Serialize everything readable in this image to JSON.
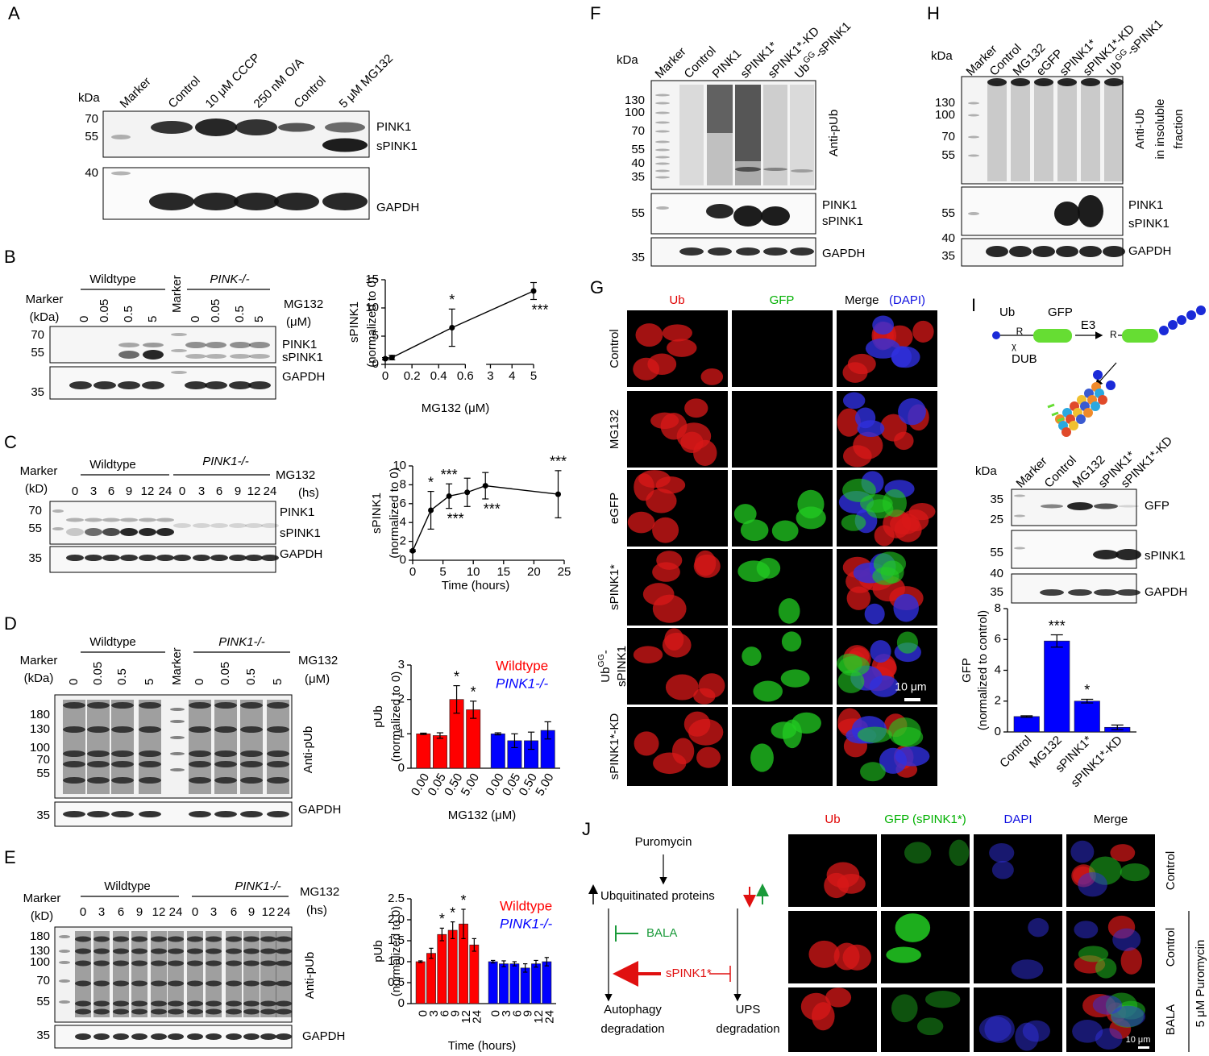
{
  "panels": {
    "A": {
      "letter": "A",
      "kda": "kDa",
      "lanes": [
        "Marker",
        "Control",
        "10 μM CCCP",
        "250 nM O/A",
        "Control",
        "5 μM MG132"
      ],
      "mw": [
        "70",
        "55",
        "40"
      ],
      "bands": [
        "PINK1",
        "sPINK1",
        "GAPDH"
      ]
    },
    "B": {
      "letter": "B",
      "marker": [
        "Marker",
        "(kDa)"
      ],
      "groups": [
        "Wildtype",
        "PINK-/-"
      ],
      "marker_lane": "Marker",
      "lanes": [
        "0",
        "0.05",
        "0.5",
        "5",
        "0",
        "0.05",
        "0.5",
        "5"
      ],
      "treatment": [
        "MG132",
        "(μM)"
      ],
      "mw": [
        "70",
        "55",
        "35"
      ],
      "bands": [
        "PINK1",
        "sPINK1",
        "GAPDH"
      ]
    },
    "C": {
      "letter": "C",
      "marker": [
        "Marker",
        "(kD)"
      ],
      "groups": [
        "Wildtype",
        "PINK1-/-"
      ],
      "lanes": [
        "0",
        "3",
        "6",
        "9",
        "12",
        "24",
        "0",
        "3",
        "6",
        "9",
        "12",
        "24"
      ],
      "treatment": [
        "MG132",
        "(hs)"
      ],
      "mw": [
        "70",
        "55",
        "35"
      ],
      "bands": [
        "PINK1",
        "sPINK1",
        "GAPDH"
      ]
    },
    "D": {
      "letter": "D",
      "marker": [
        "Marker",
        "(kDa)"
      ],
      "groups": [
        "Wildtype",
        "PINK1-/-"
      ],
      "marker_lane": "Marker",
      "lanes": [
        "0",
        "0.05",
        "0.5",
        "5",
        "0",
        "0.05",
        "0.5",
        "5"
      ],
      "treatment": [
        "MG132",
        "(μM)"
      ],
      "mw": [
        "180",
        "130",
        "100",
        "70",
        "55",
        "35"
      ],
      "bands": [
        "Anti-pUb",
        "GAPDH"
      ]
    },
    "E": {
      "letter": "E",
      "marker": [
        "Marker",
        "(kD)"
      ],
      "groups": [
        "Wildtype",
        "PINK1-/-"
      ],
      "lanes": [
        "0",
        "3",
        "6",
        "9",
        "12",
        "24",
        "0",
        "3",
        "6",
        "9",
        "12",
        "24"
      ],
      "treatment": [
        "MG132",
        "(hs)"
      ],
      "mw": [
        "180",
        "130",
        "100",
        "70",
        "55",
        "35"
      ],
      "bands": [
        "Anti-pUb",
        "GAPDH"
      ]
    },
    "F": {
      "letter": "F",
      "kda": "kDa",
      "lanes": [
        "Marker",
        "Control",
        "PINK1",
        "sPINK1*",
        "sPINK1*-KD",
        {
          "text": "Ub",
          "sup": "GG",
          "after": "-sPINK1"
        }
      ],
      "mw": [
        "130",
        "100",
        "70",
        "55",
        "40",
        "35",
        "55",
        "35"
      ],
      "bands": [
        "Anti-pUb",
        "PINK1",
        "sPINK1",
        "GAPDH"
      ]
    },
    "G": {
      "letter": "G",
      "columns": [
        "Ub",
        "GFP",
        "Merge"
      ],
      "merge_sub": "(DAPI)",
      "rows": [
        "Control",
        "MG132",
        "eGFP",
        "sPINK1*",
        {
          "text": "Ub",
          "sup": "GG",
          "after": "-",
          "line2": "sPINK1"
        },
        "sPINK1*-KD"
      ],
      "scale": "10 μm"
    },
    "H": {
      "letter": "H",
      "kda": "kDa",
      "lanes": [
        "Marker",
        "Control",
        "MG132",
        "eGFP",
        "sPINK1*",
        "sPINK1*-KD",
        {
          "text": "Ub",
          "sup": "GG",
          "after": "-sPINK1"
        }
      ],
      "mw": [
        "130",
        "100",
        "70",
        "55",
        "55",
        "40",
        "35"
      ],
      "side_label": [
        "Anti-Ub",
        "in insoluble",
        "fraction"
      ],
      "bands": [
        "PINK1",
        "sPINK1",
        "GAPDH"
      ]
    },
    "I": {
      "letter": "I",
      "schematic": {
        "ub": "Ub",
        "gfp": "GFP",
        "r": "R",
        "cut": "χ",
        "e3": "E3",
        "r2": "R",
        "dub": "DUB"
      },
      "kda": "kDa",
      "lanes": [
        "Marker",
        "Control",
        "MG132",
        "sPINK1*",
        "sPINK1*-KD"
      ],
      "mw": [
        "35",
        "25",
        "55",
        "40",
        "35"
      ],
      "bands": [
        "GFP",
        "sPINK1",
        "GAPDH"
      ]
    },
    "J": {
      "letter": "J",
      "flow": {
        "puromycin": "Puromycin",
        "ub_proteins": "Ubquitinated proteins",
        "bala": "BALA",
        "spink1": "sPINK1*",
        "autophagy": [
          "Autophagy",
          "degradation"
        ],
        "ups": [
          "UPS",
          "degradation"
        ]
      },
      "columns": [
        "Ub",
        "GFP (sPINK1*)",
        "DAPI",
        "Merge"
      ],
      "rows": [
        "Control",
        "Control",
        "BALA"
      ],
      "treatment": "5 μM Puromycin",
      "scale": "10 μm"
    }
  },
  "chart_data": [
    {
      "type": "line",
      "y_label": [
        "sPINK1",
        "(normalized to 0)"
      ],
      "x_label": "MG132 (μM)",
      "x": [
        0,
        0.05,
        0.5,
        5
      ],
      "values": [
        1,
        1.2,
        6.5,
        13
      ],
      "errors": [
        0.2,
        0.4,
        3.3,
        1.5
      ],
      "significance_above": [
        null,
        null,
        "*",
        null
      ],
      "significance_below": [
        null,
        null,
        null,
        "***"
      ],
      "xlim": [
        0,
        5
      ],
      "x_break": [
        0.6,
        2.8
      ],
      "xticks": [
        0,
        0.2,
        0.4,
        0.6,
        3,
        4,
        5
      ],
      "ylim": [
        0,
        15
      ],
      "yticks": [
        0,
        5,
        10,
        15
      ],
      "color": "#000000"
    },
    {
      "type": "line",
      "y_label": [
        "sPINK1",
        "(normalized to 0)"
      ],
      "x_label": "Time (hours)",
      "x": [
        0,
        3,
        6,
        9,
        12,
        24
      ],
      "values": [
        1,
        5.3,
        6.8,
        7.2,
        7.9,
        7
      ],
      "errors": [
        0.1,
        2,
        1.3,
        1.5,
        1.4,
        2.5
      ],
      "significance_above": [
        null,
        "*",
        "***",
        null,
        null,
        "***"
      ],
      "significance_below": [
        null,
        null,
        "***",
        null,
        "***",
        null
      ],
      "xlim": [
        0,
        25
      ],
      "xticks": [
        0,
        5,
        10,
        15,
        20,
        25
      ],
      "ylim": [
        0,
        10
      ],
      "yticks": [
        0,
        2,
        4,
        6,
        8,
        10
      ],
      "color": "#000000"
    },
    {
      "type": "bar",
      "y_label": [
        "pUb",
        "(normalized to 0)"
      ],
      "x_label": "MG132 (μM)",
      "categories": [
        "0.00",
        "0.05",
        "0.50",
        "5.00"
      ],
      "series": [
        {
          "name": "Wildtype",
          "color": "#ff0000",
          "values": [
            1,
            0.95,
            2,
            1.7
          ],
          "errors": [
            0.02,
            0.08,
            0.4,
            0.25
          ],
          "significance": [
            null,
            null,
            "*",
            "*"
          ]
        },
        {
          "name": "PINK1-/-",
          "color": "#0000ff",
          "values": [
            1,
            0.8,
            0.8,
            1.1
          ],
          "errors": [
            0.03,
            0.2,
            0.25,
            0.25
          ]
        }
      ],
      "ylim": [
        0,
        3
      ],
      "yticks": [
        0,
        1,
        2,
        3
      ],
      "legend": "upper right"
    },
    {
      "type": "bar",
      "y_label": [
        "pUb",
        "(normalized to 0)"
      ],
      "x_label": "Time (hours)",
      "categories": [
        "0",
        "3",
        "6",
        "9",
        "12",
        "24"
      ],
      "series": [
        {
          "name": "Wildtype",
          "color": "#ff0000",
          "values": [
            1,
            1.2,
            1.65,
            1.75,
            1.9,
            1.4
          ],
          "errors": [
            0.02,
            0.12,
            0.15,
            0.2,
            0.35,
            0.15
          ],
          "significance": [
            null,
            null,
            "*",
            "*",
            "*",
            null
          ]
        },
        {
          "name": "PINK1-/-",
          "color": "#0000ff",
          "values": [
            1,
            0.95,
            0.95,
            0.85,
            0.95,
            1
          ],
          "errors": [
            0.03,
            0.07,
            0.05,
            0.1,
            0.08,
            0.1
          ]
        }
      ],
      "ylim": [
        0,
        2.5
      ],
      "yticks": [
        0,
        0.5,
        {
          "value": 1,
          "label": "1.0"
        },
        1.5,
        {
          "value": 2,
          "label": "2.0"
        },
        2.5
      ],
      "legend": "upper right"
    },
    {
      "type": "bar",
      "y_label": [
        "GFP",
        "(normalized to control)"
      ],
      "categories": [
        "Control",
        "MG132",
        "sPINK1*",
        "sPINK1*-KD"
      ],
      "values": [
        1,
        5.9,
        2,
        0.3
      ],
      "errors": [
        0.05,
        0.4,
        0.12,
        0.15
      ],
      "significance": [
        null,
        "***",
        "*",
        null
      ],
      "color": "#0000ff",
      "ylim": [
        0,
        8
      ],
      "yticks": [
        0,
        2,
        4,
        6,
        8
      ]
    }
  ]
}
